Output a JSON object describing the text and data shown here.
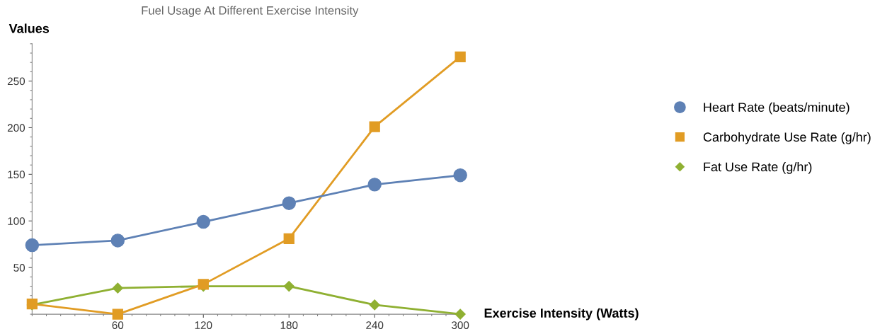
{
  "chart_data": {
    "type": "line",
    "title": "Fuel Usage At Different Exercise Intensity",
    "xlabel": "Exercise Intensity (Watts)",
    "ylabel": "Values",
    "x": [
      0,
      60,
      120,
      180,
      240,
      300
    ],
    "series": [
      {
        "name": "Heart Rate (beats/minute)",
        "color": "#5e81b5",
        "marker": "circle",
        "values": [
          74,
          79,
          99,
          119,
          139,
          149
        ]
      },
      {
        "name": "Carbohydrate Use Rate (g/hr)",
        "color": "#e19c24",
        "marker": "square",
        "values": [
          11,
          0,
          32,
          81,
          201,
          276
        ]
      },
      {
        "name": "Fat Use Rate (g/hr)",
        "color": "#8fb032",
        "marker": "diamond",
        "values": [
          10,
          28,
          30,
          30,
          10,
          0
        ]
      }
    ],
    "xlim": [
      0,
      300
    ],
    "xticks": [
      60,
      120,
      180,
      240,
      300
    ],
    "ylim": [
      0,
      290
    ],
    "yticks": [
      50,
      100,
      150,
      200,
      250
    ],
    "grid": false,
    "legend": "right",
    "line_style": "solid"
  }
}
